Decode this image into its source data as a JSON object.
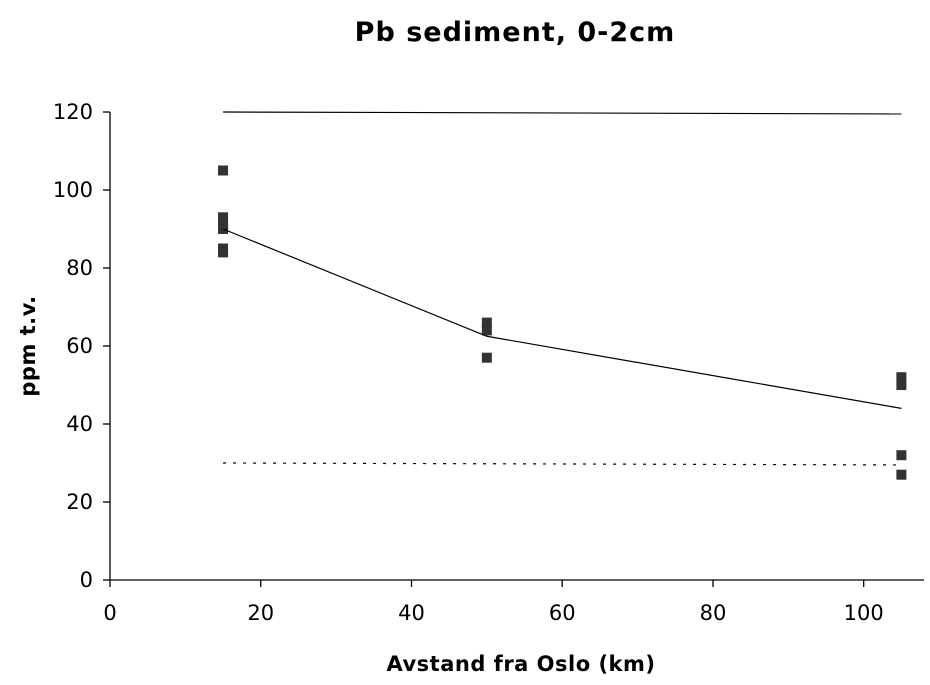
{
  "chart_data": {
    "type": "scatter",
    "title": "Pb sediment, 0-2cm",
    "xlabel": "Avstand fra Oslo (km)",
    "ylabel": "ppm t.v.",
    "xlim": [
      0,
      108
    ],
    "ylim": [
      0,
      120
    ],
    "x_ticks": [
      "0",
      "20",
      "40",
      "60",
      "80",
      "100"
    ],
    "y_ticks": [
      "0",
      "20",
      "40",
      "60",
      "80",
      "100",
      "120"
    ],
    "grid": false,
    "legend": "none",
    "series": [
      {
        "kind": "scatter",
        "marker": "square",
        "color": "#333333",
        "points": [
          [
            15,
            105
          ],
          [
            15,
            93
          ],
          [
            15,
            91
          ],
          [
            15,
            90
          ],
          [
            15,
            85
          ],
          [
            15,
            84
          ],
          [
            50,
            66
          ],
          [
            50,
            64
          ],
          [
            50,
            57
          ],
          [
            105,
            52
          ],
          [
            105,
            50
          ],
          [
            105,
            32
          ],
          [
            105,
            27
          ]
        ]
      },
      {
        "kind": "line",
        "style": "solid",
        "color": "#000000",
        "points": [
          [
            15,
            90
          ],
          [
            50,
            62.5
          ],
          [
            105,
            44
          ]
        ]
      },
      {
        "kind": "line",
        "style": "solid",
        "color": "#000000",
        "points": [
          [
            15,
            120
          ],
          [
            105,
            119.5
          ]
        ]
      },
      {
        "kind": "line",
        "style": "dashed",
        "color": "#000000",
        "points": [
          [
            15,
            30
          ],
          [
            105,
            29.5
          ]
        ]
      }
    ]
  }
}
